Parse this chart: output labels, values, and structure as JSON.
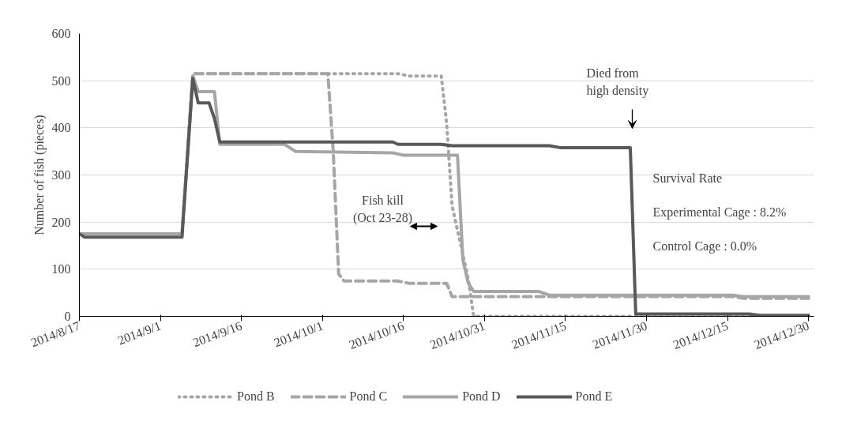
{
  "chart_data": {
    "type": "line",
    "ylabel": "Number of fish (pieces)",
    "xlim": [
      "2014-08-17",
      "2014-12-31"
    ],
    "xticks": [
      {
        "value": "2014-08-17",
        "label": "2014/8/17"
      },
      {
        "value": "2014-09-01",
        "label": "2014/9/1"
      },
      {
        "value": "2014-09-16",
        "label": "2014/9/16"
      },
      {
        "value": "2014-10-01",
        "label": "2014/10/1"
      },
      {
        "value": "2014-10-16",
        "label": "2014/10/16"
      },
      {
        "value": "2014-10-31",
        "label": "2014/10/31"
      },
      {
        "value": "2014-11-15",
        "label": "2014/11/15"
      },
      {
        "value": "2014-11-30",
        "label": "2014/11/30"
      },
      {
        "value": "2014-12-15",
        "label": "2014/12/15"
      },
      {
        "value": "2014-12-30",
        "label": "2014/12/30"
      }
    ],
    "ylim": [
      0,
      600
    ],
    "yticks": [
      0,
      100,
      200,
      300,
      400,
      500,
      600
    ],
    "grid": "y",
    "legend": "bottom",
    "series": [
      {
        "name": "Pond B",
        "color": "#a6a6a6",
        "line_style": "dotted",
        "x": [
          "2014-08-17",
          "2014-09-05",
          "2014-09-07",
          "2014-10-15",
          "2014-10-17",
          "2014-10-23",
          "2014-10-24",
          "2014-10-25",
          "2014-10-28",
          "2014-10-29",
          "2014-12-30"
        ],
        "values": [
          175,
          175,
          515,
          515,
          510,
          510,
          410,
          235,
          80,
          0,
          0
        ]
      },
      {
        "name": "Pond C",
        "color": "#a6a6a6",
        "line_style": "dashed",
        "x": [
          "2014-08-17",
          "2014-09-05",
          "2014-09-07",
          "2014-10-02",
          "2014-10-03",
          "2014-10-04",
          "2014-10-05",
          "2014-10-15",
          "2014-10-17",
          "2014-10-24",
          "2014-10-25",
          "2014-12-16",
          "2014-12-18",
          "2014-12-30"
        ],
        "values": [
          175,
          175,
          515,
          515,
          350,
          90,
          75,
          75,
          70,
          70,
          42,
          42,
          38,
          38
        ]
      },
      {
        "name": "Pond D",
        "color": "#a6a6a6",
        "line_style": "solid",
        "x": [
          "2014-08-17",
          "2014-09-05",
          "2014-09-07",
          "2014-09-08",
          "2014-09-11",
          "2014-09-12",
          "2014-09-24",
          "2014-09-26",
          "2014-10-14",
          "2014-10-16",
          "2014-10-26",
          "2014-10-27",
          "2014-10-28",
          "2014-10-29",
          "2014-11-10",
          "2014-11-12",
          "2014-12-16",
          "2014-12-18",
          "2014-12-30"
        ],
        "values": [
          175,
          175,
          510,
          477,
          477,
          365,
          365,
          350,
          347,
          342,
          342,
          120,
          70,
          53,
          53,
          45,
          45,
          42,
          42
        ]
      },
      {
        "name": "Pond E",
        "color": "#595959",
        "line_style": "solid",
        "x": [
          "2014-08-17",
          "2014-08-18",
          "2014-09-05",
          "2014-09-07",
          "2014-09-08",
          "2014-09-10",
          "2014-09-11",
          "2014-09-12",
          "2014-10-14",
          "2014-10-15",
          "2014-10-23",
          "2014-10-25",
          "2014-11-12",
          "2014-11-14",
          "2014-11-27",
          "2014-11-28",
          "2014-12-19",
          "2014-12-21",
          "2014-12-30"
        ],
        "values": [
          175,
          168,
          168,
          505,
          453,
          453,
          420,
          370,
          370,
          365,
          365,
          362,
          362,
          358,
          358,
          5,
          5,
          2,
          2
        ]
      }
    ],
    "annotations": [
      "Fish kill\n(Oct 23-28)",
      "Died from\nhigh density",
      "Survival Rate",
      "Experimental Cage : 8.2%",
      "Control Cage : 0.0%"
    ]
  }
}
